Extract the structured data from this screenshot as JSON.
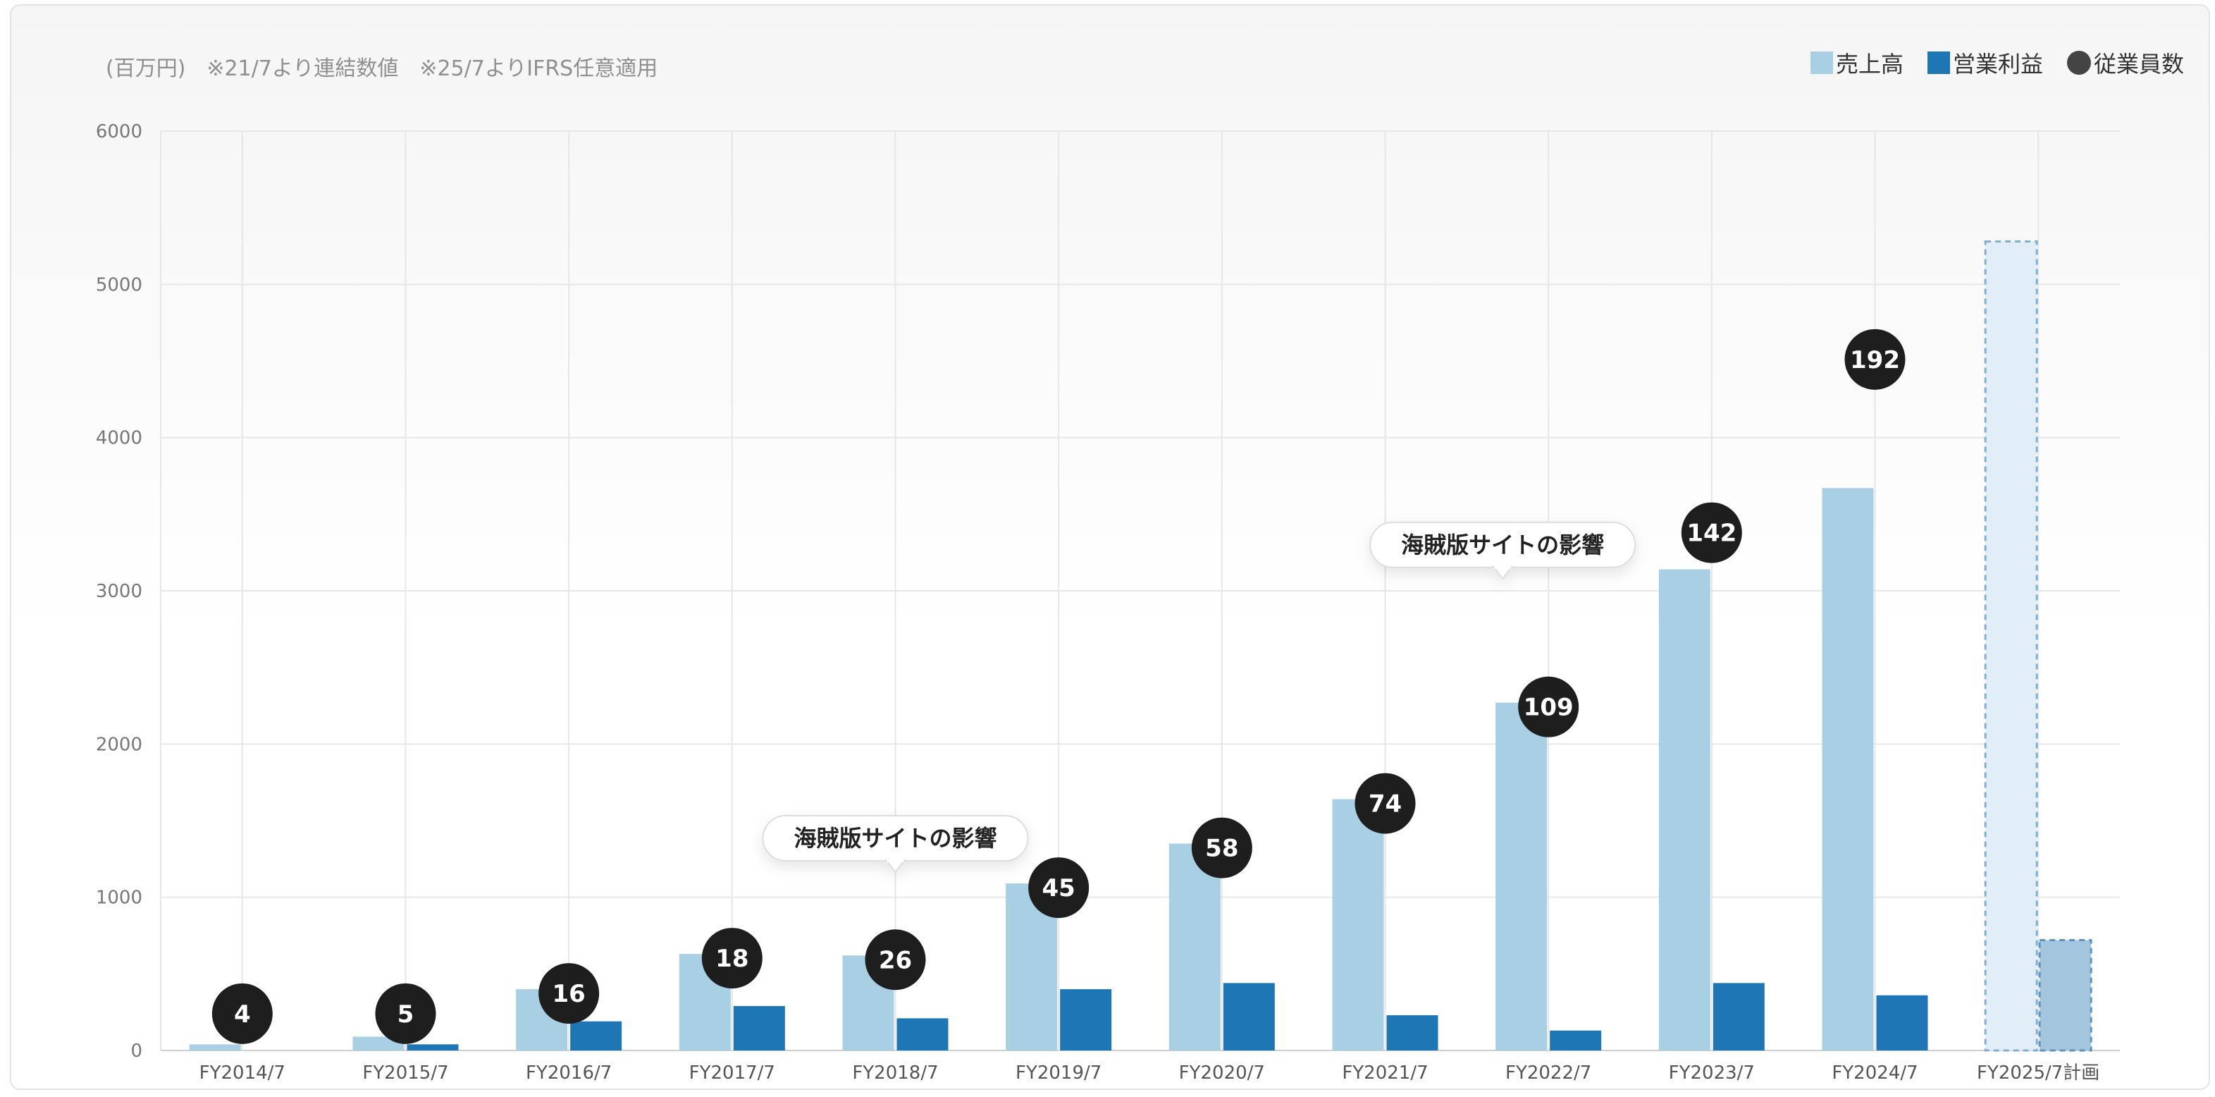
{
  "header": {
    "unit_note": "(百万円)　※21/7より連結数値　※25/7よりIFRS任意適用"
  },
  "legend": [
    {
      "label": "売上高",
      "color": "#a8cfe4",
      "shape": "square"
    },
    {
      "label": "営業利益",
      "color": "#1f76b4",
      "shape": "square"
    },
    {
      "label": "従業員数",
      "color": "#444444",
      "shape": "circle"
    }
  ],
  "chart_data": {
    "type": "bar",
    "grid": true,
    "legend_position": "top-right",
    "ylim": [
      0,
      6000
    ],
    "yticks": [
      0,
      1000,
      2000,
      3000,
      4000,
      5000,
      6000
    ],
    "categories": [
      "FY2014/7",
      "FY2015/7",
      "FY2016/7",
      "FY2017/7",
      "FY2018/7",
      "FY2019/7",
      "FY2020/7",
      "FY2021/7",
      "FY2022/7",
      "FY2023/7",
      "FY2024/7",
      "FY2025/7計画"
    ],
    "series": [
      {
        "name": "売上高",
        "color": "#a8cfe4",
        "values": [
          40,
          90,
          400,
          630,
          620,
          1090,
          1350,
          1640,
          2270,
          3140,
          3670,
          5280
        ]
      },
      {
        "name": "営業利益",
        "color": "#1f76b4",
        "values": [
          0,
          40,
          190,
          290,
          210,
          400,
          440,
          230,
          130,
          440,
          360,
          720
        ]
      },
      {
        "name": "従業員数",
        "color": "#1e1e1e",
        "values": [
          4,
          5,
          16,
          18,
          26,
          45,
          58,
          74,
          109,
          142,
          192,
          null
        ]
      }
    ],
    "forecast_category": "FY2025/7計画",
    "annotations": [
      {
        "text": "海賊版サイトの影響",
        "category": "FY2018/7"
      },
      {
        "text": "海賊版サイトの影響",
        "category": "FY2022/7"
      }
    ]
  }
}
